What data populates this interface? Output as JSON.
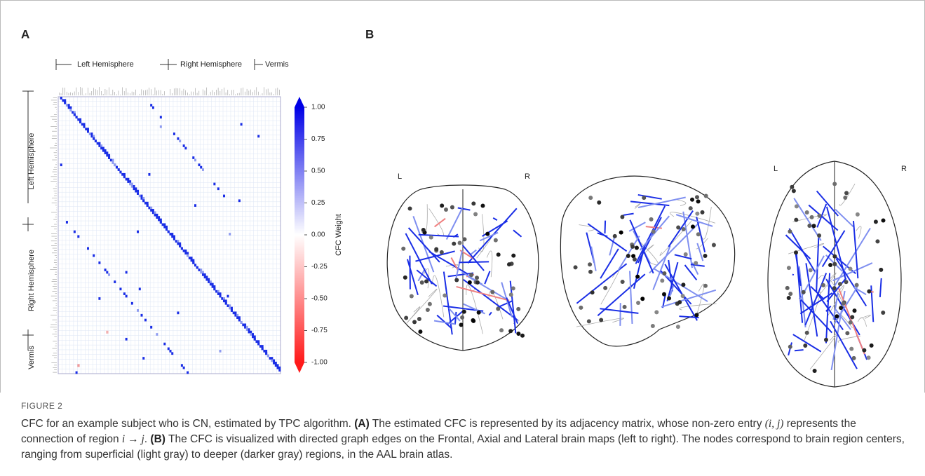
{
  "panel_a": {
    "label": "A",
    "top_groups": [
      "Left Hemisphere",
      "Right Hemisphere",
      "Vermis"
    ],
    "side_groups": [
      "Left Hemisphere",
      "Right Hemisphere",
      "Vermis"
    ],
    "colorbar": {
      "title": "CFC Weight",
      "lim": [
        -1,
        1
      ],
      "ticks": [
        {
          "value": 1,
          "label": "1.00"
        },
        {
          "value": 0.75,
          "label": "0.75"
        },
        {
          "value": 0.5,
          "label": "0.50"
        },
        {
          "value": 0.25,
          "label": "0.25"
        },
        {
          "value": 0,
          "label": "0.00"
        },
        {
          "value": -0.25,
          "label": "-0.25"
        },
        {
          "value": -0.5,
          "label": "-0.50"
        },
        {
          "value": -0.75,
          "label": "-0.75"
        },
        {
          "value": -1,
          "label": "-1.00"
        }
      ]
    }
  },
  "panel_b": {
    "label": "B",
    "side_labels": [
      "L",
      "R",
      "L",
      "R"
    ]
  },
  "caption": {
    "figure": "FIGURE 2",
    "parts": [
      "CFC for an example subject who is CN, estimated by TPC algorithm.",
      "(A)",
      "The estimated CFC is represented by its adjacency matrix, whose non-zero entry",
      "(i, j)",
      "represents the connection of region",
      "i → j",
      ".",
      "(B)",
      "The CFC is visualized with directed graph edges on the Frontal, Axial and Lateral brain maps (left to right). The nodes correspond to brain region centers, ranging from superficial (light gray) to deeper (darker gray) regions, in the AAL brain atlas."
    ]
  }
}
